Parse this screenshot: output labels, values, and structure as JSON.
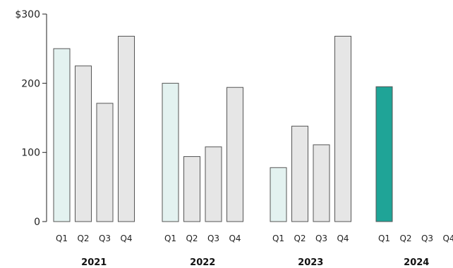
{
  "chart_data": {
    "type": "bar",
    "title": "",
    "xlabel": "",
    "ylabel": "",
    "ylim": [
      0,
      300
    ],
    "y_ticks": [
      0,
      100,
      200,
      300
    ],
    "y_tick_labels": [
      "0",
      "100",
      "200",
      "$300"
    ],
    "grid": false,
    "colors": {
      "q1": "#e3f2f0",
      "other": "#e6e6e6",
      "highlight": "#1fa497",
      "stroke": "#555555"
    },
    "groups": [
      {
        "label": "2021",
        "categories": [
          "Q1",
          "Q2",
          "Q3",
          "Q4"
        ],
        "values": [
          250,
          225,
          171,
          268
        ]
      },
      {
        "label": "2022",
        "categories": [
          "Q1",
          "Q2",
          "Q3",
          "Q4"
        ],
        "values": [
          200,
          94,
          108,
          194
        ]
      },
      {
        "label": "2023",
        "categories": [
          "Q1",
          "Q2",
          "Q3",
          "Q4"
        ],
        "values": [
          78,
          138,
          111,
          268
        ]
      },
      {
        "label": "2024",
        "categories": [
          "Q1",
          "Q2",
          "Q3",
          "Q4"
        ],
        "values": [
          195,
          null,
          null,
          null
        ]
      }
    ]
  }
}
